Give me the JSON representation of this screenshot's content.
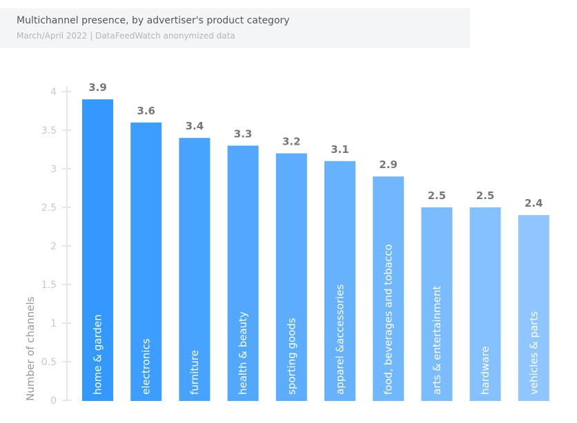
{
  "chart_data": {
    "type": "bar",
    "title": "Multichannel presence, by advertiser's product category",
    "subtitle": "March/April 2022 | DataFeedWatch anonymized data",
    "xlabel": "",
    "ylabel": "Number of channels",
    "ylim": [
      0,
      4
    ],
    "yticks": [
      "0",
      "0.5",
      "1",
      "1.5",
      "2",
      "2.5",
      "3",
      "3.5",
      "4"
    ],
    "grid": false,
    "categories": [
      "home & garden",
      "electronics",
      "furniture",
      "health & beauty",
      "sporting goods",
      "apparel &accessories",
      "food, beverages and tobacco",
      "arts & entertainment",
      "hardware",
      "vehicles & parts"
    ],
    "values": [
      3.9,
      3.6,
      3.4,
      3.3,
      3.2,
      3.1,
      2.9,
      2.5,
      2.5,
      2.4
    ],
    "colors": [
      "#3399ff",
      "#3d9eff",
      "#48a3ff",
      "#52a8ff",
      "#5cadff",
      "#66b2ff",
      "#71b7ff",
      "#7bbcff",
      "#85c1ff",
      "#8fc6ff"
    ]
  }
}
